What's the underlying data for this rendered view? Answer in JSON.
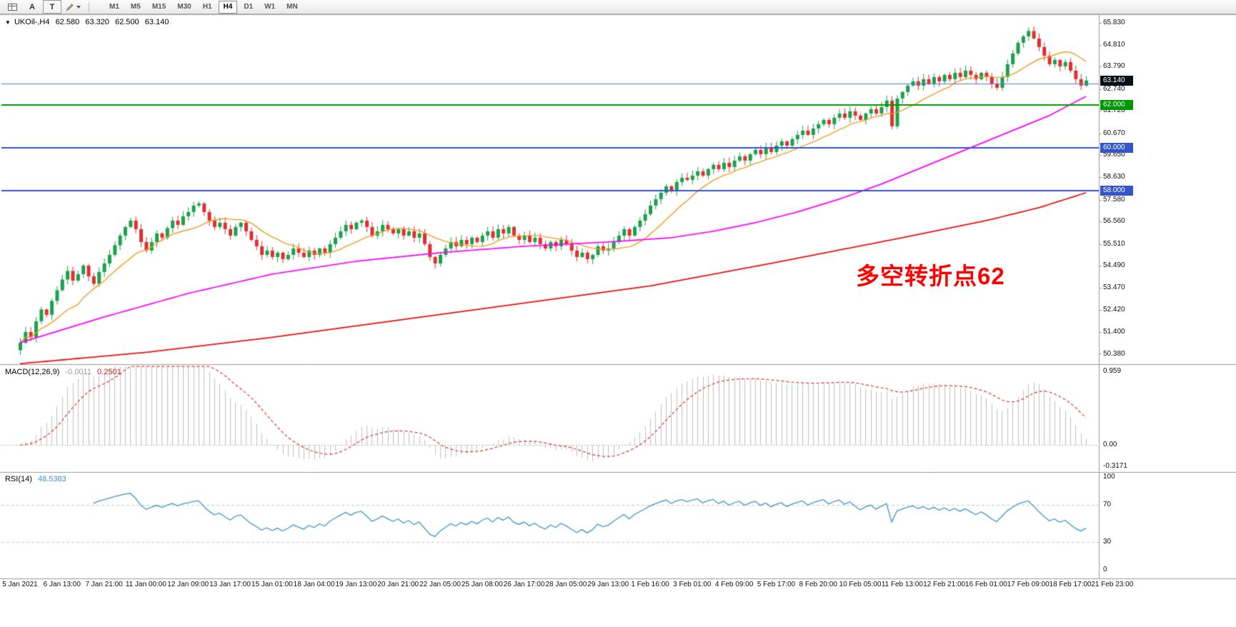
{
  "toolbar": {
    "tools": [
      {
        "name": "chart-window-icon",
        "type": "grid"
      },
      {
        "name": "arrow-tool-button",
        "label": "A"
      },
      {
        "name": "text-tool-button",
        "label": "T",
        "boxed": true
      },
      {
        "name": "drawing-tool-button",
        "type": "pencil",
        "dropdown": true
      }
    ],
    "timeframes": [
      "M1",
      "M5",
      "M15",
      "M30",
      "H1",
      "H4",
      "D1",
      "W1",
      "MN"
    ],
    "active_timeframe": "H4"
  },
  "chart": {
    "symbol_header": {
      "expander": "▼",
      "symbol": "UKOil-,H4",
      "open": "62.580",
      "high": "63.320",
      "low": "62.500",
      "close": "63.140"
    },
    "annotation": {
      "text": "多空转折点62",
      "color": "#ff0000"
    },
    "price_axis": [
      "65.830",
      "64.810",
      "63.790",
      "62.740",
      "61.720",
      "60.670",
      "59.650",
      "58.630",
      "57.580",
      "56.560",
      "55.510",
      "54.490",
      "53.470",
      "52.420",
      "51.400",
      "50.380"
    ],
    "time_axis": [
      "5 Jan 2021",
      "6 Jan 13:00",
      "7 Jan 21:00",
      "11 Jan 00:00",
      "12 Jan 09:00",
      "13 Jan 17:00",
      "15 Jan 01:00",
      "18 Jan 04:00",
      "19 Jan 13:00",
      "20 Jan 21:00",
      "22 Jan 05:00",
      "25 Jan 08:00",
      "26 Jan 17:00",
      "28 Jan 05:00",
      "29 Jan 13:00",
      "1 Feb 16:00",
      "3 Feb 01:00",
      "4 Feb 09:00",
      "5 Feb 17:00",
      "8 Feb 20:00",
      "10 Feb 05:00",
      "11 Feb 13:00",
      "12 Feb 21:00",
      "16 Feb 01:00",
      "17 Feb 09:00",
      "18 Feb 17:00",
      "21 Feb 23:00"
    ],
    "badges": [
      {
        "text": "63.140",
        "bg": "#0c0e1a",
        "price": 63.14
      },
      {
        "text": "62.000",
        "bg": "#009600",
        "price": 62.0
      },
      {
        "text": "60.000",
        "bg": "#3355c8",
        "price": 60.0
      },
      {
        "text": "58.000",
        "bg": "#3355c8",
        "price": 58.0
      }
    ],
    "hlines": [
      {
        "price": 63.0,
        "color": "#5577cc",
        "w": 1
      },
      {
        "price": 62.0,
        "color": "#009600",
        "w": 2
      },
      {
        "price": 60.0,
        "color": "#3355c8",
        "w": 2
      },
      {
        "price": 58.0,
        "color": "#3355c8",
        "w": 2
      }
    ]
  },
  "macd_panel": {
    "title": "MACD(12,26,9)",
    "main_value": "-0.0011",
    "signal_value": "0.2501",
    "axis": [
      "0.959",
      "0.00",
      "-0.3171"
    ]
  },
  "rsi_panel": {
    "title": "RSI(14)",
    "value": "48.5383",
    "axis": [
      "100",
      "70",
      "30",
      "0"
    ]
  },
  "chart_data": {
    "type": "candlestick",
    "symbol": "UKOil-",
    "timeframe": "H4",
    "title": "UKOil- H4 with MA fast/mid/slow, MACD(12,26,9), RSI(14)",
    "price_range": [
      50.38,
      65.83
    ],
    "last_ohlc": {
      "open": 62.58,
      "high": 63.32,
      "low": 62.5,
      "close": 63.14
    },
    "first_open": 50.55,
    "closes": [
      50.9,
      51.4,
      51.15,
      51.9,
      52.45,
      52.2,
      52.85,
      53.35,
      53.85,
      54.25,
      53.8,
      54.1,
      54.5,
      54.0,
      53.65,
      54.2,
      54.6,
      55.0,
      55.45,
      55.9,
      56.3,
      56.6,
      56.2,
      55.6,
      55.2,
      55.6,
      56.0,
      55.8,
      56.25,
      56.6,
      56.4,
      56.8,
      57.0,
      57.3,
      57.4,
      57.0,
      56.6,
      56.3,
      56.5,
      56.2,
      55.9,
      56.3,
      56.5,
      56.1,
      55.7,
      55.4,
      55.0,
      55.2,
      54.9,
      55.1,
      54.8,
      55.0,
      55.3,
      55.1,
      54.9,
      55.2,
      55.0,
      55.3,
      55.1,
      55.5,
      55.8,
      56.1,
      56.4,
      56.2,
      56.5,
      56.6,
      56.3,
      55.9,
      56.1,
      56.4,
      56.2,
      56.0,
      56.2,
      55.9,
      56.1,
      55.8,
      56.0,
      55.5,
      54.9,
      54.6,
      55.0,
      55.3,
      55.6,
      55.4,
      55.7,
      55.5,
      55.8,
      55.6,
      55.9,
      56.1,
      55.8,
      56.2,
      56.0,
      56.3,
      55.9,
      55.7,
      55.9,
      55.6,
      55.8,
      55.5,
      55.3,
      55.6,
      55.4,
      55.7,
      55.5,
      55.2,
      54.9,
      55.1,
      54.8,
      55.0,
      55.4,
      55.2,
      55.3,
      55.6,
      55.9,
      56.2,
      55.9,
      56.3,
      56.6,
      56.9,
      57.3,
      57.6,
      57.9,
      58.2,
      58.0,
      58.4,
      58.6,
      58.5,
      58.7,
      58.9,
      58.7,
      59.0,
      59.2,
      59.0,
      59.3,
      59.1,
      59.4,
      59.6,
      59.4,
      59.7,
      59.9,
      59.7,
      60.0,
      59.8,
      60.1,
      60.3,
      60.1,
      60.4,
      60.6,
      60.8,
      60.6,
      60.9,
      61.1,
      61.3,
      61.1,
      61.4,
      61.6,
      61.4,
      61.7,
      61.5,
      61.3,
      61.6,
      61.8,
      61.6,
      61.9,
      62.2,
      61.0,
      62.3,
      62.6,
      62.9,
      63.1,
      62.9,
      63.2,
      63.0,
      63.3,
      63.1,
      63.4,
      63.2,
      63.5,
      63.3,
      63.6,
      63.4,
      63.2,
      63.5,
      63.3,
      63.0,
      62.8,
      63.3,
      63.9,
      64.4,
      64.9,
      65.2,
      65.45,
      65.1,
      64.7,
      64.3,
      63.9,
      64.1,
      63.8,
      64.0,
      63.6,
      63.2,
      62.9,
      63.14
    ],
    "candle_up_color": "#1aa14b",
    "candle_down_color": "#e12f2f",
    "ma_fast": {
      "period": 12,
      "color": "#f59a23"
    },
    "ma_mid": {
      "color": "#ff00ff",
      "anchors": [
        [
          0,
          50.9
        ],
        [
          16,
          52.1
        ],
        [
          32,
          53.2
        ],
        [
          48,
          54.1
        ],
        [
          64,
          54.7
        ],
        [
          80,
          55.1
        ],
        [
          96,
          55.4
        ],
        [
          112,
          55.6
        ],
        [
          124,
          55.8
        ],
        [
          132,
          56.1
        ],
        [
          140,
          56.5
        ],
        [
          148,
          57.0
        ],
        [
          156,
          57.6
        ],
        [
          164,
          58.3
        ],
        [
          172,
          59.1
        ],
        [
          180,
          59.9
        ],
        [
          188,
          60.7
        ],
        [
          196,
          61.5
        ],
        [
          203,
          62.4
        ]
      ]
    },
    "ma_slow": {
      "color": "#ee1111",
      "anchors": [
        [
          0,
          49.92
        ],
        [
          24,
          50.45
        ],
        [
          48,
          51.15
        ],
        [
          72,
          51.95
        ],
        [
          96,
          52.75
        ],
        [
          120,
          53.55
        ],
        [
          144,
          54.65
        ],
        [
          168,
          55.8
        ],
        [
          184,
          56.6
        ],
        [
          194,
          57.2
        ],
        [
          203,
          57.9
        ]
      ]
    },
    "indicators": {
      "macd": {
        "fast": 12,
        "slow": 26,
        "signal": 9,
        "main": -0.0011,
        "signal_line": 0.2501,
        "scale_max": 0.959,
        "scale_min": -0.3171,
        "hist_color": "#c0c0c0",
        "signal_color": "#e03030"
      },
      "rsi": {
        "period": 14,
        "value": 48.5383,
        "levels": [
          70,
          30
        ],
        "color": "#3d96d2",
        "scale": [
          0,
          100
        ]
      }
    }
  }
}
